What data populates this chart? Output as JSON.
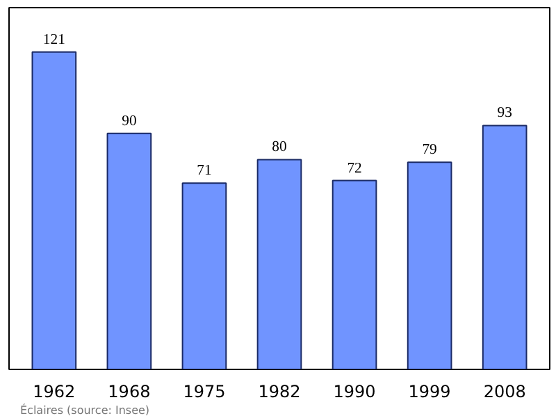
{
  "chart_data": {
    "type": "bar",
    "categories": [
      "1962",
      "1968",
      "1975",
      "1982",
      "1990",
      "1999",
      "2008"
    ],
    "values": [
      121,
      90,
      71,
      80,
      72,
      79,
      93
    ],
    "color": "#7094ff",
    "data_labels": true,
    "grid": false,
    "annotations": [
      "Éclaires    (source: Insee)"
    ]
  }
}
